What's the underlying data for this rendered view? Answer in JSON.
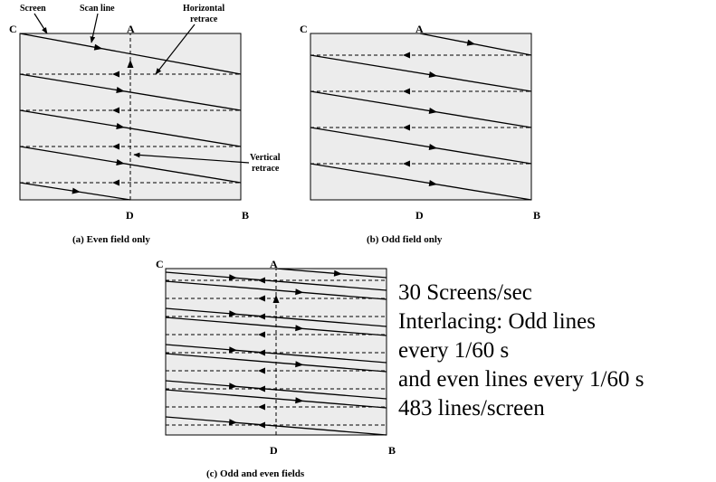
{
  "panel_a": {
    "corner_c": "C",
    "corner_a": "A",
    "corner_d": "D",
    "corner_b": "B",
    "label_screen": "Screen",
    "label_scan_line": "Scan line",
    "label_horizontal_retrace": [
      "Horizontal",
      "retrace"
    ],
    "label_vertical_retrace": [
      "Vertical",
      "retrace"
    ],
    "caption": "(a) Even field only"
  },
  "panel_b": {
    "corner_c": "C",
    "corner_a": "A",
    "corner_d": "D",
    "corner_b": "B",
    "caption": "(b) Odd field only"
  },
  "panel_c": {
    "corner_c": "C",
    "corner_a": "A",
    "corner_d": "D",
    "corner_b": "B",
    "caption": "(c) Odd and even fields"
  },
  "notes": [
    "30 Screens/sec",
    "Interlacing: Odd lines",
    "every 1/60 s",
    "and even lines every 1/60 s",
    "483 lines/screen"
  ],
  "colors": {
    "screen_fill": "#ececec",
    "line": "#000000"
  }
}
